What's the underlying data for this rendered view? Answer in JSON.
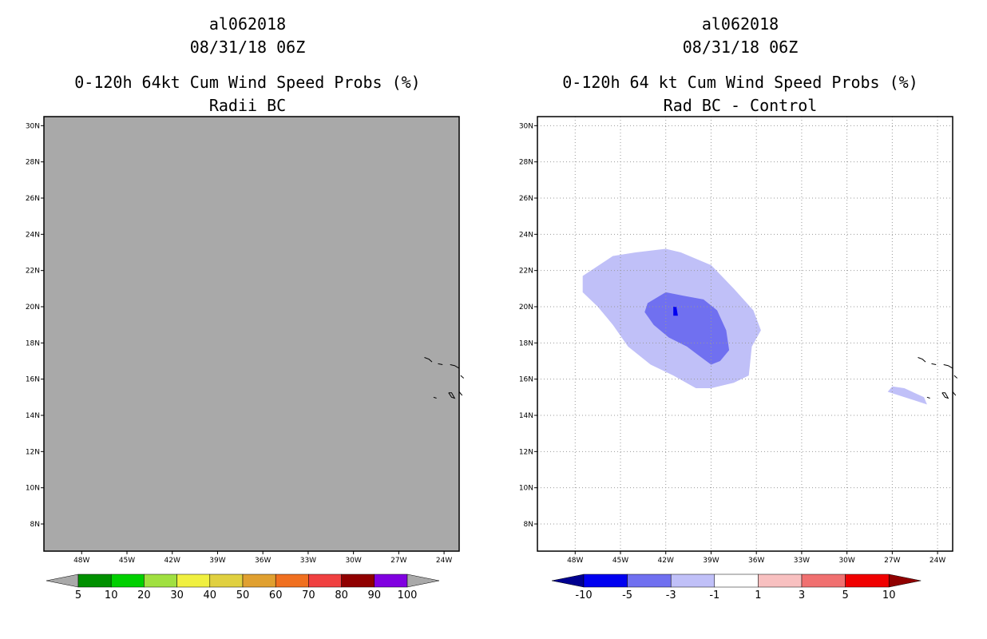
{
  "chart_data": [
    {
      "type": "heatmap",
      "title_lines": [
        "al062018",
        "08/31/18 06Z",
        "0-120h 64kt Cum Wind Speed Probs (%)",
        "Radii BC"
      ],
      "lon_ticks": [
        "48W",
        "45W",
        "42W",
        "39W",
        "36W",
        "33W",
        "30W",
        "27W",
        "24W"
      ],
      "lat_ticks": [
        "30N",
        "28N",
        "26N",
        "24N",
        "22N",
        "20N",
        "18N",
        "16N",
        "14N",
        "12N",
        "10N",
        "8N"
      ],
      "xlim": [
        -50.5,
        -23.0
      ],
      "ylim": [
        6.5,
        30.5
      ],
      "grid": false,
      "field_color": "#a9a9a9",
      "field_description_value": "all values below 5",
      "colorbar": {
        "labels": [
          "5",
          "10",
          "20",
          "30",
          "40",
          "50",
          "60",
          "70",
          "80",
          "90",
          "100"
        ],
        "colors": [
          "#009000",
          "#00d000",
          "#a0e040",
          "#f0f040",
          "#e0d040",
          "#e0a030",
          "#f07020",
          "#f04040",
          "#900000",
          "#8000e0"
        ],
        "under_color": "#a9a9a9",
        "over_color": "#a9a9a9"
      }
    },
    {
      "type": "heatmap",
      "title_lines": [
        "al062018",
        "08/31/18 06Z",
        "0-120h 64 kt Cum Wind Speed Probs (%)",
        "Rad BC - Control"
      ],
      "lon_ticks": [
        "48W",
        "45W",
        "42W",
        "39W",
        "36W",
        "33W",
        "30W",
        "27W",
        "24W"
      ],
      "lat_ticks": [
        "30N",
        "28N",
        "26N",
        "24N",
        "22N",
        "20N",
        "18N",
        "16N",
        "14N",
        "12N",
        "10N",
        "8N"
      ],
      "xlim": [
        -50.5,
        -23.0
      ],
      "ylim": [
        6.5,
        30.5
      ],
      "grid": true,
      "regions": [
        {
          "level": "-3 to -1",
          "color": "#c0c0f8",
          "points": [
            [
              -47.5,
              21.7
            ],
            [
              -45.5,
              22.8
            ],
            [
              -44.0,
              23.0
            ],
            [
              -42.0,
              23.2
            ],
            [
              -41.0,
              23.0
            ],
            [
              -39.0,
              22.3
            ],
            [
              -37.5,
              21.0
            ],
            [
              -36.2,
              19.8
            ],
            [
              -35.7,
              18.7
            ],
            [
              -36.3,
              17.8
            ],
            [
              -36.5,
              16.2
            ],
            [
              -37.5,
              15.8
            ],
            [
              -39.0,
              15.5
            ],
            [
              -40.0,
              15.5
            ],
            [
              -41.5,
              16.2
            ],
            [
              -43.0,
              16.8
            ],
            [
              -44.5,
              17.8
            ],
            [
              -45.5,
              19.0
            ],
            [
              -46.5,
              20.0
            ],
            [
              -47.5,
              20.8
            ]
          ]
        },
        {
          "level": "-3 to -1",
          "color": "#c0c0f8",
          "points": [
            [
              -27.3,
              15.3
            ],
            [
              -25.8,
              14.9
            ],
            [
              -24.7,
              14.6
            ],
            [
              -24.9,
              15.0
            ],
            [
              -26.2,
              15.5
            ],
            [
              -27.0,
              15.6
            ]
          ]
        },
        {
          "level": "-5 to -3",
          "color": "#7070f0",
          "points": [
            [
              -43.2,
              20.2
            ],
            [
              -42.0,
              20.8
            ],
            [
              -40.8,
              20.6
            ],
            [
              -39.5,
              20.4
            ],
            [
              -38.6,
              19.8
            ],
            [
              -38.0,
              18.7
            ],
            [
              -37.8,
              17.6
            ],
            [
              -38.4,
              17.0
            ],
            [
              -39.0,
              16.8
            ],
            [
              -39.8,
              17.3
            ],
            [
              -40.6,
              17.8
            ],
            [
              -41.8,
              18.3
            ],
            [
              -42.8,
              19.0
            ],
            [
              -43.4,
              19.7
            ]
          ]
        },
        {
          "level": "-10 to -5",
          "color": "#0000f0",
          "points": [
            [
              -41.5,
              20.0
            ],
            [
              -41.3,
              20.0
            ],
            [
              -41.2,
              19.5
            ],
            [
              -41.5,
              19.5
            ]
          ]
        }
      ],
      "colorbar": {
        "labels": [
          "-10",
          "-5",
          "-3",
          "-1",
          "1",
          "3",
          "5",
          "10"
        ],
        "colors": [
          "#0000f0",
          "#7070f0",
          "#c0c0f8",
          "#ffffff",
          "#f8c0c0",
          "#f07070",
          "#f00000"
        ],
        "under_color": "#000090",
        "over_color": "#900000"
      }
    }
  ]
}
